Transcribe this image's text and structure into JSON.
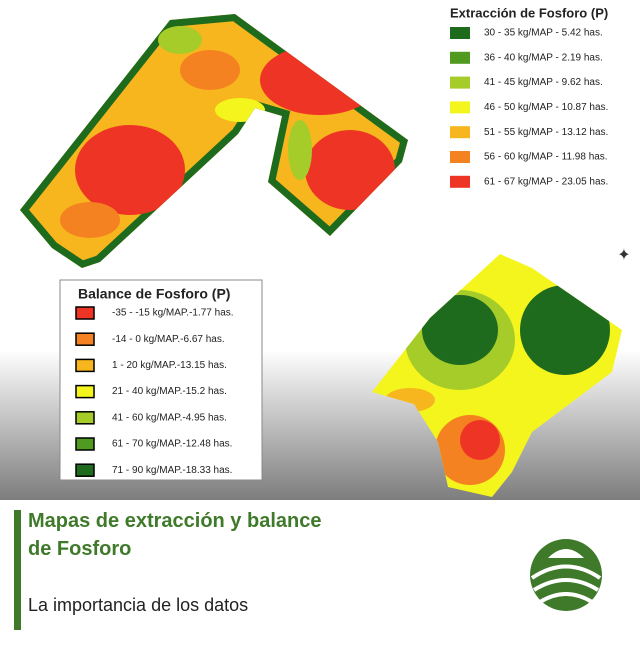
{
  "extraction_legend": {
    "title": "Extracción de Fosforo (P)",
    "items": [
      {
        "label": "30 - 35 kg/MAP - 5.42 has.",
        "color": "#1e6b1e"
      },
      {
        "label": "36 - 40 kg/MAP - 2.19 has.",
        "color": "#4f9a1f"
      },
      {
        "label": "41 - 45 kg/MAP - 9.62 has.",
        "color": "#a6cc2a"
      },
      {
        "label": "46 - 50 kg/MAP - 10.87 has.",
        "color": "#f5f51e"
      },
      {
        "label": "51 - 55 kg/MAP - 13.12 has.",
        "color": "#f7b51e"
      },
      {
        "label": "56 - 60 kg/MAP - 11.98 has.",
        "color": "#f58220"
      },
      {
        "label": "61 - 67 kg/MAP - 23.05 has.",
        "color": "#ee3424"
      }
    ]
  },
  "balance_legend": {
    "title": "Balance de Fosforo (P)",
    "items": [
      {
        "label": "-35 - -15 kg/MAP.-1.77 has.",
        "color": "#ee3424"
      },
      {
        "label": "-14 - 0 kg/MAP.-6.67 has.",
        "color": "#f58220"
      },
      {
        "label": "1 - 20 kg/MAP.-13.15 has.",
        "color": "#f7b51e"
      },
      {
        "label": "21 - 40 kg/MAP.-15.2 has.",
        "color": "#f5f51e"
      },
      {
        "label": "41 - 60 kg/MAP.-4.95 has.",
        "color": "#a6cc2a"
      },
      {
        "label": "61 - 70 kg/MAP.-12.48 has.",
        "color": "#4f9a1f"
      },
      {
        "label": "71 - 90 kg/MAP.-18.33 has.",
        "color": "#1e6b1e"
      }
    ]
  },
  "footer": {
    "title": "Mapas de extracción y balance de Fosforo",
    "subtitle": "La importancia de los datos"
  }
}
